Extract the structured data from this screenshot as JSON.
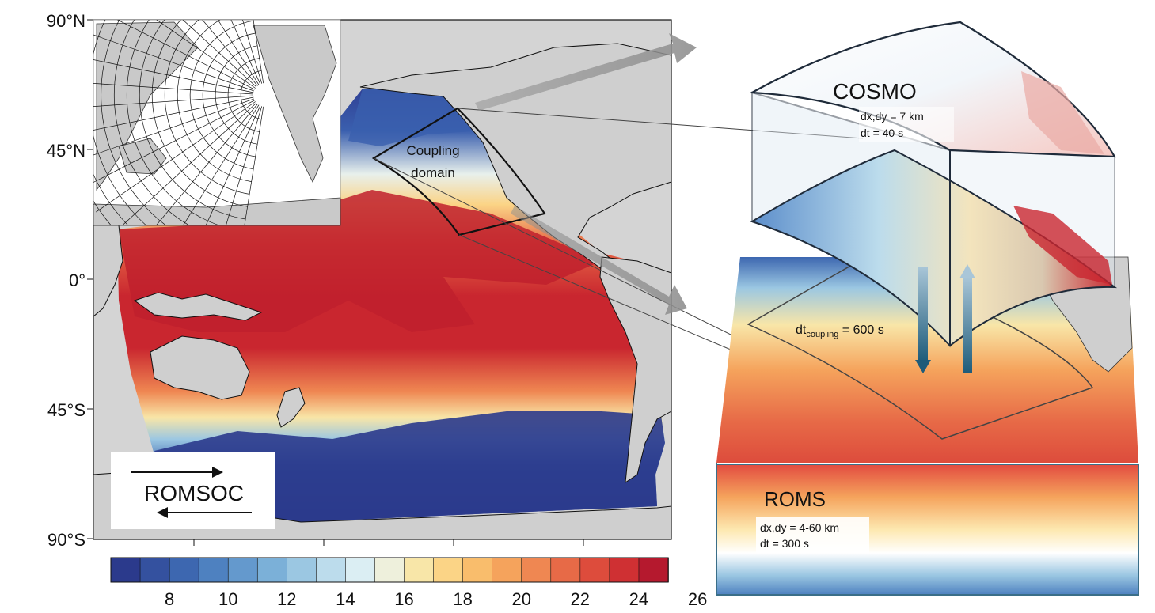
{
  "main_map": {
    "lat_labels": [
      "90°N",
      "45°N",
      "0°",
      "45°S",
      "90°S"
    ],
    "coupling_label_line1": "Coupling",
    "coupling_label_line2": "domain"
  },
  "romsoc_label": "ROMSOC",
  "colorbar": {
    "ticks": [
      "8",
      "10",
      "12",
      "14",
      "16",
      "18",
      "20",
      "22",
      "24",
      "26"
    ],
    "colors": [
      "#2b3a8c",
      "#34519f",
      "#3d67b0",
      "#4e81c0",
      "#6499cd",
      "#7bb0d8",
      "#9bc7e2",
      "#bcdcec",
      "#dbeef3",
      "#eef0dc",
      "#f8e6a8",
      "#fbd486",
      "#f9bd6c",
      "#f5a35c",
      "#ef8752",
      "#e76a47",
      "#dd4c3c",
      "#cf3033",
      "#b5192e"
    ]
  },
  "cosmo": {
    "title": "COSMO",
    "res": "dx,dy =  7 km",
    "dt": "dt = 40 s"
  },
  "coupling_dt": {
    "prefix": "dt",
    "subscript": "coupling",
    "suffix": " = 600 s"
  },
  "roms": {
    "title": "ROMS",
    "res": "dx,dy =  4-60 km",
    "dt": "dt = 300 s"
  }
}
